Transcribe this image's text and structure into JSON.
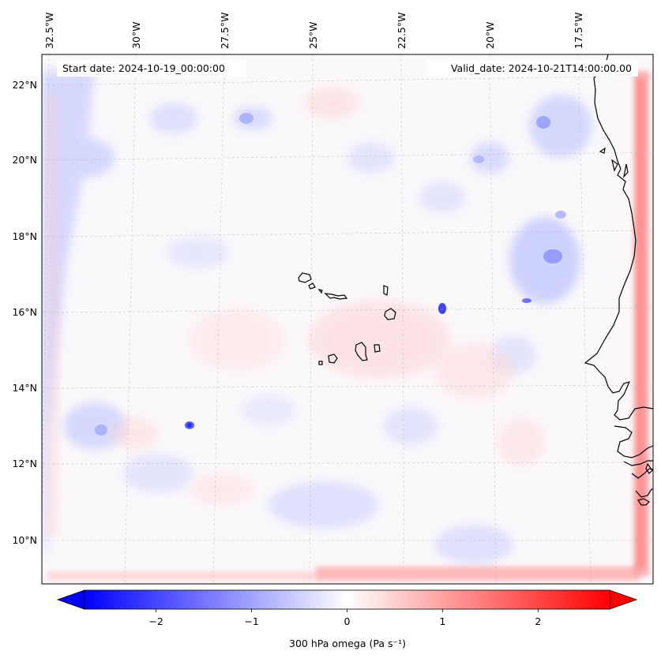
{
  "header": {
    "start_date": "Start date: 2024-10-19_00:00:00",
    "valid_date": "Valid_date: 2024-10-21T14:00:00.00"
  },
  "map": {
    "longitude_labels": [
      "32.5°W",
      "30°W",
      "27.5°W",
      "25°W",
      "22.5°W",
      "20°W",
      "17.5°W"
    ],
    "latitude_labels": [
      "22°N",
      "20°N",
      "18°N",
      "16°N",
      "14°N",
      "12°N",
      "10°N"
    ],
    "gridlines": true,
    "coastline_color": "#000000"
  },
  "colorbar": {
    "label": "300 hPa omega (Pa s⁻¹)",
    "tick_labels": [
      "−2",
      "−1",
      "0",
      "1",
      "2"
    ],
    "tick_values": [
      -2,
      -1,
      0,
      1,
      2
    ],
    "range": [
      -2.75,
      2.75
    ],
    "extend": "both",
    "colormap": "bwr",
    "low_color": "#0000ff",
    "mid_color": "#ffffff",
    "high_color": "#ff0000"
  }
}
